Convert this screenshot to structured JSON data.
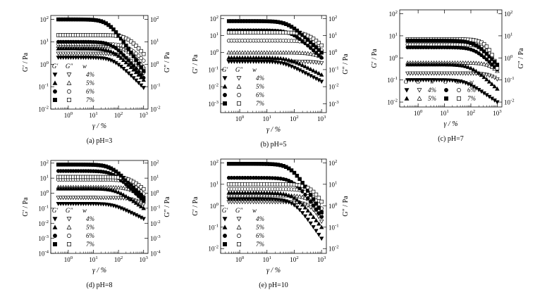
{
  "chart_data": [
    {
      "type": "scatter",
      "caption": "(a) pH=3",
      "xlabel": "γ / %",
      "ylabel": "G′ / Pa",
      "y2label": "G″ / Pa",
      "xscale": "log",
      "yscale": "log",
      "xlim": [
        0.2,
        1500
      ],
      "ylim": [
        0.01,
        150
      ],
      "x_ticks": [
        "10^0",
        "10^1",
        "10^2",
        "10^3"
      ],
      "y_ticks": [
        "10^-2",
        "10^-1",
        "10^0",
        "10^1",
        "10^2"
      ],
      "y2_ticks": [
        "10^-2",
        "10^-1",
        "10^0",
        "10^1",
        "10^2"
      ],
      "legend_position": "bottom-left",
      "legend_layout": "rows",
      "legend_header": [
        "G′",
        "G″",
        "w"
      ],
      "series": [
        {
          "name": "4%",
          "marker": "triangle-down",
          "gp": {
            "plateau": 2.0,
            "xc": 60,
            "end": 0.09
          },
          "gpp": {
            "plateau": 3.0,
            "xc": 200,
            "end": 0.4
          }
        },
        {
          "name": "5%",
          "marker": "triangle-up",
          "gp": {
            "plateau": 5.0,
            "xc": 60,
            "end": 0.2
          },
          "gpp": {
            "plateau": 6.5,
            "xc": 200,
            "end": 0.8
          }
        },
        {
          "name": "6%",
          "marker": "circle",
          "gp": {
            "plateau": 10.0,
            "xc": 60,
            "end": 0.25
          },
          "gpp": {
            "plateau": 8.0,
            "xc": 250,
            "end": 1.5
          }
        },
        {
          "name": "7%",
          "marker": "square",
          "gp": {
            "plateau": 100,
            "xc": 40,
            "end": 0.5
          },
          "gpp": {
            "plateau": 20,
            "xc": 250,
            "end": 3.0
          }
        }
      ]
    },
    {
      "type": "scatter",
      "caption": "(b) pH=5",
      "xlabel": "γ / %",
      "ylabel": "G′ / Pa",
      "y2label": "G″ / Pa",
      "xscale": "log",
      "yscale": "log",
      "xlim": [
        0.2,
        1500
      ],
      "ylim": [
        0.0003,
        150
      ],
      "x_ticks": [
        "10^0",
        "10^1",
        "10^2",
        "10^3"
      ],
      "y_ticks": [
        "10^-3",
        "10^-2",
        "10^-1",
        "10^0",
        "10^1",
        "10^2"
      ],
      "y2_ticks": [
        "10^-3",
        "10^-2",
        "10^-1",
        "10^0",
        "10^1",
        "10^2"
      ],
      "legend_position": "bottom-left",
      "legend_layout": "rows",
      "legend_header": [
        "G′",
        "G″",
        "w"
      ],
      "series": [
        {
          "name": "4%",
          "marker": "triangle-down",
          "gp": {
            "plateau": 0.3,
            "xc": 40,
            "end": 0.02
          },
          "gpp": {
            "plateau": 0.3,
            "xc": 500,
            "end": 0.25
          }
        },
        {
          "name": "5%",
          "marker": "triangle-up",
          "gp": {
            "plateau": 0.5,
            "xc": 60,
            "end": 0.05
          },
          "gpp": {
            "plateau": 1.0,
            "xc": 500,
            "end": 0.6
          }
        },
        {
          "name": "6%",
          "marker": "circle",
          "gp": {
            "plateau": 20,
            "xc": 80,
            "end": 0.5
          },
          "gpp": {
            "plateau": 5.0,
            "xc": 400,
            "end": 1.5
          }
        },
        {
          "name": "7%",
          "marker": "square",
          "gp": {
            "plateau": 70,
            "xc": 60,
            "end": 1.0
          },
          "gpp": {
            "plateau": 15,
            "xc": 400,
            "end": 3.0
          }
        }
      ]
    },
    {
      "type": "scatter",
      "caption": "(c) pH=7",
      "xlabel": "γ / %",
      "ylabel": "G′ / Pa",
      "y2label": "G″ / Pa",
      "xscale": "log",
      "yscale": "log",
      "xlim": [
        0.2,
        1500
      ],
      "ylim": [
        0.006,
        150
      ],
      "x_ticks": [
        "10^0",
        "10^1",
        "10^2",
        "10^3"
      ],
      "y_ticks": [
        "10^-2",
        "10^-1",
        "10^0",
        "10^1",
        "10^2"
      ],
      "y2_ticks": [
        "10^-2",
        "10^-1",
        "10^0",
        "10^1",
        "10^2"
      ],
      "legend_position": "bottom-left",
      "legend_layout": "two-columns",
      "legend_header": [
        "G′",
        "G″",
        "w",
        "G′",
        "G″",
        "w"
      ],
      "series": [
        {
          "name": "4%",
          "marker": "triangle-down",
          "gp": {
            "plateau": 0.1,
            "xc": 60,
            "end": 0.01
          },
          "gpp": {
            "plateau": 0.2,
            "xc": 800,
            "end": 0.15
          }
        },
        {
          "name": "5%",
          "marker": "triangle-up",
          "gp": {
            "plateau": 0.5,
            "xc": 100,
            "end": 0.04
          },
          "gpp": {
            "plateau": 0.6,
            "xc": 800,
            "end": 0.4
          }
        },
        {
          "name": "6%",
          "marker": "circle",
          "gp": {
            "plateau": 3.0,
            "xc": 150,
            "end": 0.3
          },
          "gpp": {
            "plateau": 4.0,
            "xc": 700,
            "end": 0.8
          }
        },
        {
          "name": "7%",
          "marker": "square",
          "gp": {
            "plateau": 6.0,
            "xc": 150,
            "end": 0.5
          },
          "gpp": {
            "plateau": 7.0,
            "xc": 700,
            "end": 1.0
          }
        }
      ]
    },
    {
      "type": "scatter",
      "caption": "(d) pH=8",
      "xlabel": "γ / %",
      "ylabel": "G′ / Pa",
      "y2label": "G″ / Pa",
      "xscale": "log",
      "yscale": "log",
      "xlim": [
        0.2,
        1500
      ],
      "ylim": [
        0.0001,
        150
      ],
      "x_ticks": [
        "10^0",
        "10^1",
        "10^2",
        "10^3"
      ],
      "y_ticks": [
        "10^-4",
        "10^-3",
        "10^-2",
        "10^-1",
        "10^0",
        "10^1",
        "10^2"
      ],
      "y2_ticks": [
        "10^-4",
        "10^-3",
        "10^-2",
        "10^-1",
        "10^0",
        "10^1",
        "10^2"
      ],
      "legend_position": "bottom-left",
      "legend_layout": "rows",
      "legend_header": [
        "G′",
        "G″",
        "w"
      ],
      "series": [
        {
          "name": "4%",
          "marker": "triangle-down",
          "gp": {
            "plateau": 0.2,
            "xc": 60,
            "end": 0.02
          },
          "gpp": {
            "plateau": 0.5,
            "xc": 400,
            "end": 0.2
          }
        },
        {
          "name": "5%",
          "marker": "triangle-up",
          "gp": {
            "plateau": 2.0,
            "xc": 80,
            "end": 0.1
          },
          "gpp": {
            "plateau": 2.5,
            "xc": 400,
            "end": 0.5
          }
        },
        {
          "name": "6%",
          "marker": "circle",
          "gp": {
            "plateau": 30,
            "xc": 60,
            "end": 0.3
          },
          "gpp": {
            "plateau": 8.0,
            "xc": 300,
            "end": 1.0
          }
        },
        {
          "name": "7%",
          "marker": "square",
          "gp": {
            "plateau": 80,
            "xc": 50,
            "end": 0.5
          },
          "gpp": {
            "plateau": 12,
            "xc": 300,
            "end": 2.0
          }
        }
      ]
    },
    {
      "type": "scatter",
      "caption": "(e) pH=10",
      "xlabel": "γ / %",
      "ylabel": "G′ / Pa",
      "y2label": "G″ / Pa",
      "xscale": "log",
      "yscale": "log",
      "xlim": [
        0.2,
        1500
      ],
      "ylim": [
        0.006,
        150
      ],
      "x_ticks": [
        "10^0",
        "10^1",
        "10^2",
        "10^3"
      ],
      "y_ticks": [
        "10^-2",
        "10^-1",
        "10^0",
        "10^1",
        "10^2"
      ],
      "y2_ticks": [
        "10^-2",
        "10^-1",
        "10^0",
        "10^1",
        "10^2"
      ],
      "legend_position": "bottom-left",
      "legend_layout": "rows",
      "legend_header": [
        "G′",
        "G″",
        "w"
      ],
      "series": [
        {
          "name": "4%",
          "marker": "triangle-down",
          "gp": {
            "plateau": 2.0,
            "xc": 100,
            "end": 0.03
          },
          "gpp": {
            "plateau": 1.5,
            "xc": 600,
            "end": 0.3
          }
        },
        {
          "name": "5%",
          "marker": "triangle-up",
          "gp": {
            "plateau": 4.0,
            "xc": 100,
            "end": 0.1
          },
          "gpp": {
            "plateau": 3.0,
            "xc": 600,
            "end": 0.6
          }
        },
        {
          "name": "6%",
          "marker": "circle",
          "gp": {
            "plateau": 20,
            "xc": 100,
            "end": 0.3
          },
          "gpp": {
            "plateau": 6.0,
            "xc": 500,
            "end": 1.0
          }
        },
        {
          "name": "7%",
          "marker": "square",
          "gp": {
            "plateau": 90,
            "xc": 80,
            "end": 0.5
          },
          "gpp": {
            "plateau": 10,
            "xc": 500,
            "end": 2.0
          }
        }
      ]
    }
  ]
}
